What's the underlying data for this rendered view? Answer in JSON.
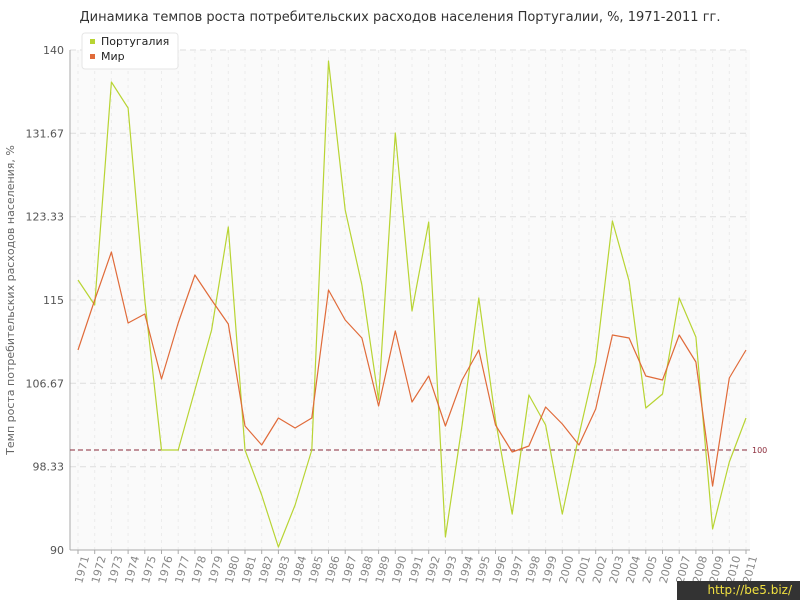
{
  "title": "Динамика темпов роста потребительских расходов населения Португалии, %, 1971-2011 гг.",
  "watermark": "http://be5.biz/",
  "colors": {
    "portugal": "#b8d433",
    "world": "#e06b3a",
    "reference": "#8b2a3a",
    "grid": "#dddddd",
    "axis": "#aaaaaa"
  },
  "chart_data": {
    "type": "line",
    "title": "Динамика темпов роста потребительских расходов населения Португалии, %, 1971-2011 гг.",
    "ylabel": "Темп роста потребительских расходов населения, %",
    "xlabel": "",
    "ylim": [
      90,
      140
    ],
    "yticks": [
      "90",
      "98.33",
      "106.67",
      "115",
      "123.33",
      "131.67",
      "140"
    ],
    "grid": true,
    "legend_position": "top-left",
    "categories": [
      "1971",
      "1972",
      "1973",
      "1974",
      "1975",
      "1976",
      "1977",
      "1978",
      "1979",
      "1980",
      "1981",
      "1982",
      "1983",
      "1984",
      "1985",
      "1986",
      "1987",
      "1988",
      "1989",
      "1990",
      "1991",
      "1992",
      "1993",
      "1994",
      "1995",
      "1996",
      "1997",
      "1998",
      "1999",
      "2000",
      "2001",
      "2002",
      "2003",
      "2004",
      "2005",
      "2006",
      "2007",
      "2008",
      "2009",
      "2010",
      "2011"
    ],
    "reference_line": {
      "value": 100,
      "label": "100"
    },
    "series": [
      {
        "name": "Португалия",
        "values": [
          117.0,
          114.5,
          136.8,
          134.2,
          115.0,
          100.0,
          100.0,
          106.0,
          112.0,
          122.3,
          100.0,
          95.5,
          90.3,
          94.5,
          100.0,
          138.9,
          124.0,
          116.5,
          105.0,
          131.7,
          113.9,
          122.8,
          91.3,
          102.5,
          115.2,
          103.0,
          93.6,
          105.5,
          102.5,
          93.6,
          101.5,
          108.8,
          122.9,
          116.9,
          104.2,
          105.6,
          115.2,
          111.3,
          92.1,
          98.8,
          103.2
        ]
      },
      {
        "name": "Мир",
        "values": [
          110.0,
          115.0,
          119.8,
          112.7,
          113.6,
          107.1,
          112.7,
          117.5,
          115.0,
          112.6,
          102.4,
          100.5,
          103.2,
          102.2,
          103.2,
          116.0,
          113.0,
          111.2,
          104.4,
          111.9,
          104.8,
          107.4,
          102.4,
          107.0,
          110.0,
          102.5,
          99.8,
          100.4,
          104.3,
          102.6,
          100.5,
          104.1,
          111.5,
          111.2,
          107.4,
          107.0,
          111.5,
          108.8,
          96.4,
          107.2,
          110.0
        ]
      }
    ]
  }
}
